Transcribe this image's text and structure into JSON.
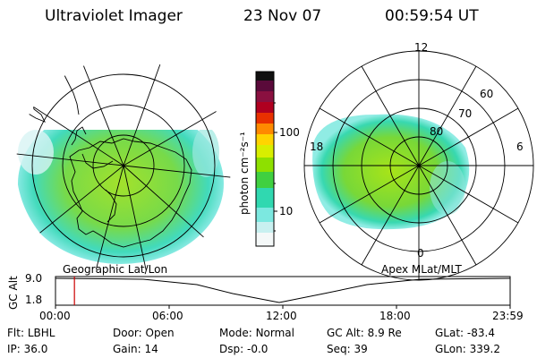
{
  "header": {
    "instrument": "Ultraviolet Imager",
    "date": "23 Nov 07",
    "time": "00:59:54 UT"
  },
  "left_panel": {
    "label": "Geographic Lat/Lon"
  },
  "right_panel": {
    "label": "Apex MLat/MLT",
    "lat_labels": [
      "60",
      "70",
      "80"
    ],
    "mlt_labels": {
      "top": "12",
      "left": "18",
      "right": "6",
      "bottom": "0"
    }
  },
  "colorbar": {
    "unit_label": "photon cm⁻²s⁻¹",
    "ticks": [
      "100",
      "10"
    ],
    "colors": [
      "#101010",
      "#5a0a3a",
      "#b00020",
      "#e83000",
      "#ff8a00",
      "#ffd400",
      "#d8ee00",
      "#8ee000",
      "#40d040",
      "#30d8b0",
      "#7ce8e0",
      "#c8f0f0",
      "#f4f8f8"
    ]
  },
  "altitude_plot": {
    "ylabel": "GC Alt",
    "yticks": [
      "9.0",
      "1.8"
    ],
    "xticks": [
      "00:00",
      "06:00",
      "12:00",
      "18:00",
      "23:59"
    ],
    "marker_hour": 1.0,
    "marker_color": "#cc0000"
  },
  "status": {
    "row1": [
      {
        "key": "Flt:",
        "value": "LBHL"
      },
      {
        "key": "Door:",
        "value": "Open"
      },
      {
        "key": "Mode:",
        "value": "Normal"
      },
      {
        "key": "GC Alt:",
        "value": "8.9 Re"
      },
      {
        "key": "GLat:",
        "value": "-83.4"
      }
    ],
    "row2": [
      {
        "key": "IP:",
        "value": "36.0"
      },
      {
        "key": "Gain:",
        "value": "14"
      },
      {
        "key": "Dsp:",
        "value": "-0.0"
      },
      {
        "key": "Seq:",
        "value": "39"
      },
      {
        "key": "GLon:",
        "value": "339.2"
      }
    ]
  }
}
